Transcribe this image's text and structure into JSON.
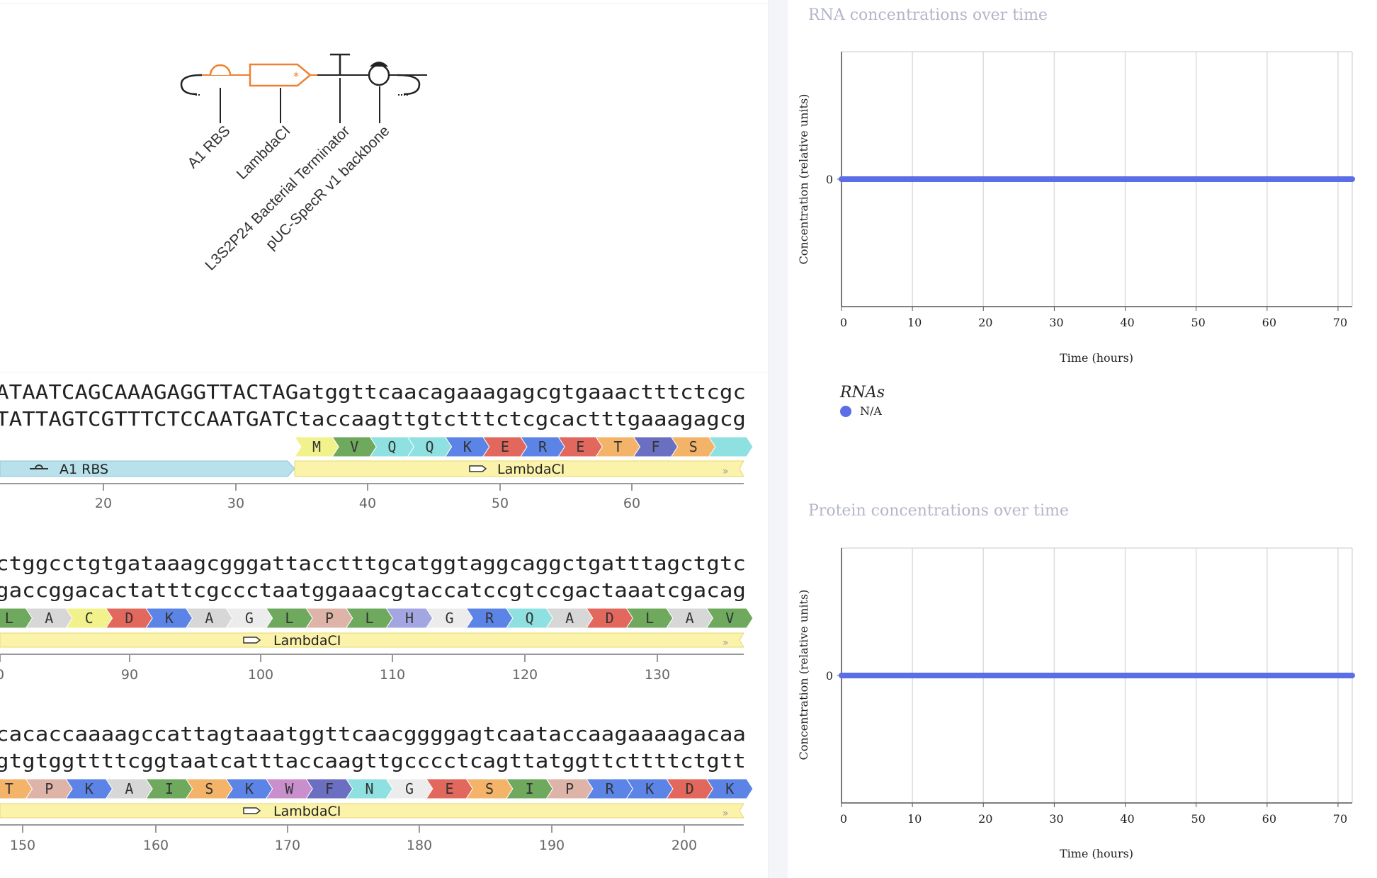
{
  "glyph": {
    "labels": [
      "A1 RBS",
      "LambdaCI",
      "L3S2P24 Bacterial Terminator",
      "pUC-SpecR v1 backbone"
    ]
  },
  "sequence_rows": [
    {
      "top": "ATAATCAGCAAAGAGGTTACTAGatggttcaacagaaagagcgtgaaactttctcgc",
      "bottom": "TATTAGTCGTTTCTCCAATGATCtaccaagttgtctttctcgcactttgaaagagcg",
      "aa": [
        "M",
        "V",
        "Q",
        "Q",
        "K",
        "E",
        "R",
        "E",
        "T",
        "F",
        "S",
        ""
      ],
      "features": [
        {
          "label": "A1 RBS",
          "color": "#b8e1ec"
        },
        {
          "label": "LambdaCI",
          "color": "#fbf3a9"
        }
      ],
      "ticks": [
        "20",
        "30",
        "40",
        "50",
        "60"
      ]
    },
    {
      "top": "ctggcctgtgataaagcgggattacctttgcatggtaggcaggctgatttagctgtc",
      "bottom": "gaccggacactatttcgccctaatggaaacgtaccatccgtccgactaaatcgacag",
      "aa": [
        "L",
        "A",
        "C",
        "D",
        "K",
        "A",
        "G",
        "L",
        "P",
        "L",
        "H",
        "G",
        "R",
        "Q",
        "A",
        "D",
        "L",
        "A",
        "V"
      ],
      "features": [
        {
          "label": "LambdaCI",
          "color": "#fbf3a9"
        }
      ],
      "ticks": [
        "0",
        "90",
        "100",
        "110",
        "120",
        "130"
      ]
    },
    {
      "top": "cacaccaaaagccattagtaaatggttcaacggggagtcaataccaagaaaagacaa",
      "bottom": "gtgtggttttcggtaatcatttaccaagttgcccctcagttatggttcttttctgtt",
      "aa": [
        "T",
        "P",
        "K",
        "A",
        "I",
        "S",
        "K",
        "W",
        "F",
        "N",
        "G",
        "E",
        "S",
        "I",
        "P",
        "R",
        "K",
        "D",
        "K"
      ],
      "features": [
        {
          "label": "LambdaCI",
          "color": "#fbf3a9"
        }
      ],
      "ticks": [
        "150",
        "160",
        "170",
        "180",
        "190",
        "200"
      ]
    }
  ],
  "aa_colors": {
    "M": "#f1f28c",
    "V": "#6fa95e",
    "Q": "#8fe0e0",
    "K": "#5b84e6",
    "E": "#e2675c",
    "R": "#5b84e6",
    "T": "#f3b46a",
    "F": "#6b6fc2",
    "S": "#f3b46a",
    "L": "#6fa95e",
    "A": "#d7d7d7",
    "C": "#f1f28c",
    "D": "#e2675c",
    "G": "#ececec",
    "P": "#dfb4a8",
    "H": "#a4a6e2",
    "I": "#6fa95e",
    "W": "#c98fcc",
    "N": "#8fe0e0",
    "": "#8fe0e0"
  },
  "charts": {
    "rna": {
      "title": "RNA concentrations over time",
      "xlabel": "Time (hours)",
      "ylabel": "Concentration (relative units)"
    },
    "protein": {
      "title": "Protein concentrations over time",
      "xlabel": "Time (hours)",
      "ylabel": "Concentration (relative units)"
    }
  },
  "chart_data": [
    {
      "type": "line",
      "title": "RNA concentrations over time",
      "xlabel": "Time (hours)",
      "ylabel": "Concentration (relative units)",
      "x_ticks": [
        0,
        10,
        20,
        30,
        40,
        50,
        60,
        70
      ],
      "y_ticks": [
        0
      ],
      "xlim": [
        0,
        72
      ],
      "series": [
        {
          "name": "N/A",
          "color": "#5b6ee8",
          "x": [
            0,
            72
          ],
          "values": [
            0,
            0
          ]
        }
      ]
    },
    {
      "type": "line",
      "title": "Protein concentrations over time",
      "xlabel": "Time (hours)",
      "ylabel": "Concentration (relative units)",
      "x_ticks": [
        0,
        10,
        20,
        30,
        40,
        50,
        60,
        70
      ],
      "y_ticks": [
        0
      ],
      "xlim": [
        0,
        72
      ],
      "series": [
        {
          "color": "#5b6ee8",
          "x": [
            0,
            72
          ],
          "values": [
            0,
            0
          ]
        }
      ]
    }
  ],
  "legend": {
    "title": "RNAs",
    "items": [
      {
        "label": "N/A",
        "color": "#5b6ee8"
      }
    ]
  }
}
